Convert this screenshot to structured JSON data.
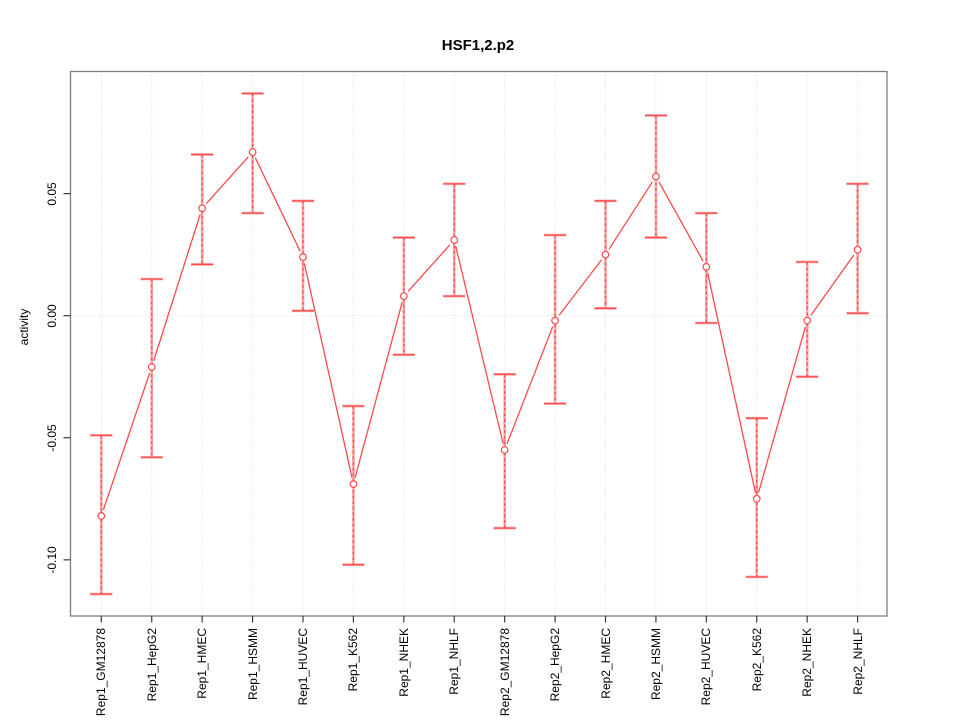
{
  "chart_data": {
    "type": "line",
    "title": "HSF1,2.p2",
    "xlabel": "",
    "ylabel": "activity",
    "legend": "none",
    "marker": "open-circle",
    "grid": "vertical-dotted-per-category",
    "zero_reference_line": 0,
    "ylim": [
      -0.123,
      0.1
    ],
    "yticks": [
      {
        "value": 0.05,
        "label": "0.05"
      },
      {
        "value": 0.0,
        "label": "0.00"
      },
      {
        "value": -0.05,
        "label": "-0.05"
      },
      {
        "value": -0.1,
        "label": "-0.10"
      }
    ],
    "categories": [
      "Rep1_GM12878",
      "Rep1_HepG2",
      "Rep1_HMEC",
      "Rep1_HSMM",
      "Rep1_HUVEC",
      "Rep1_K562",
      "Rep1_NHEK",
      "Rep1_NHLF",
      "Rep2_GM12878",
      "Rep2_HepG2",
      "Rep2_HMEC",
      "Rep2_HSMM",
      "Rep2_HUVEC",
      "Rep2_K562",
      "Rep2_NHEK",
      "Rep2_NHLF"
    ],
    "series": [
      {
        "name": "activity",
        "values": [
          -0.082,
          -0.021,
          0.044,
          0.067,
          0.024,
          -0.069,
          0.008,
          0.031,
          -0.055,
          -0.002,
          0.025,
          0.057,
          0.02,
          -0.075,
          -0.002,
          0.027
        ],
        "error_low": [
          -0.114,
          -0.058,
          0.021,
          0.042,
          0.002,
          -0.102,
          -0.016,
          0.008,
          -0.087,
          -0.036,
          0.003,
          0.032,
          -0.003,
          -0.107,
          -0.025,
          0.001
        ],
        "error_high": [
          -0.049,
          0.015,
          0.066,
          0.091,
          0.047,
          -0.037,
          0.032,
          0.054,
          -0.024,
          0.033,
          0.047,
          0.082,
          0.042,
          -0.042,
          0.022,
          0.054
        ]
      }
    ],
    "colors": {
      "line": "#f94b4b",
      "error_bar": "#ffa3a3",
      "grid": "#dcdcdc",
      "box": "#7e7e7e",
      "tick": "#3a3a3a",
      "text": "#000000",
      "background": "#ffffff"
    }
  }
}
